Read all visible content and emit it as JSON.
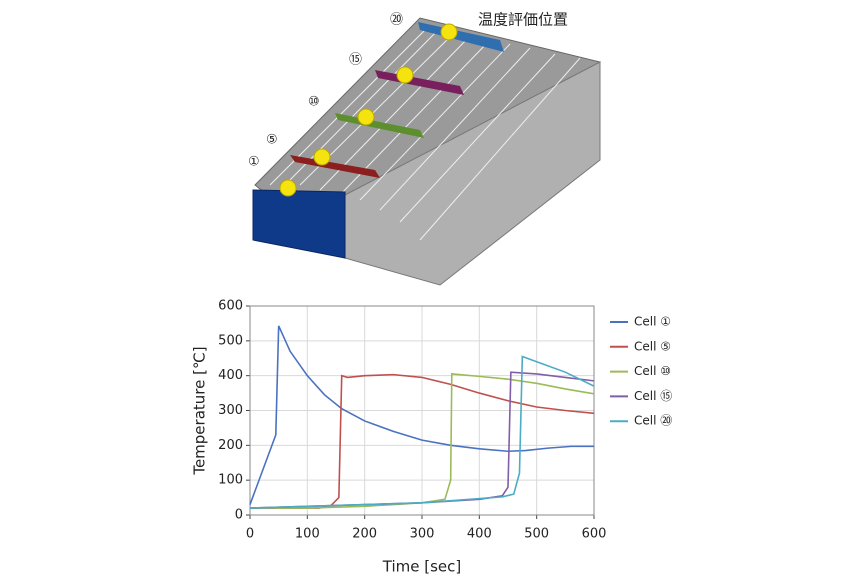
{
  "illustration": {
    "cell_labels": [
      "①",
      "⑤",
      "⑩",
      "⑮",
      "⑳"
    ],
    "caption": "温度評価位置"
  },
  "chart_data": {
    "type": "line",
    "x_label": "Time [sec]",
    "y_label": "Temperature [℃]",
    "xlim": [
      0,
      600
    ],
    "ylim": [
      0,
      600
    ],
    "xticks": [
      0,
      100,
      200,
      300,
      400,
      500,
      600
    ],
    "yticks": [
      0,
      100,
      200,
      300,
      400,
      500,
      600
    ],
    "grid": true,
    "legend": "right",
    "series": [
      {
        "name": "Cell ①",
        "color": "#4a72c0",
        "x": [
          0,
          45,
          50,
          70,
          100,
          130,
          160,
          200,
          250,
          300,
          350,
          400,
          450,
          480,
          520,
          560,
          600
        ],
        "values": [
          30,
          230,
          543,
          470,
          400,
          345,
          305,
          270,
          240,
          215,
          200,
          190,
          183,
          185,
          192,
          197,
          197
        ]
      },
      {
        "name": "Cell ⑤",
        "color": "#c0504d",
        "x": [
          0,
          120,
          140,
          155,
          160,
          170,
          200,
          250,
          300,
          350,
          400,
          450,
          500,
          550,
          600
        ],
        "values": [
          20,
          20,
          25,
          50,
          400,
          395,
          400,
          403,
          395,
          375,
          350,
          328,
          310,
          300,
          292
        ]
      },
      {
        "name": "Cell ⑩",
        "color": "#9bbb59",
        "x": [
          0,
          100,
          200,
          300,
          340,
          350,
          352,
          400,
          450,
          500,
          550,
          600
        ],
        "values": [
          20,
          20,
          25,
          35,
          45,
          100,
          405,
          398,
          390,
          378,
          362,
          348
        ]
      },
      {
        "name": "Cell ⑮",
        "color": "#7f5fa7",
        "x": [
          0,
          300,
          400,
          440,
          450,
          455,
          500,
          550,
          600
        ],
        "values": [
          20,
          35,
          45,
          55,
          80,
          410,
          405,
          395,
          385
        ]
      },
      {
        "name": "Cell ⑳",
        "color": "#4bacc6",
        "x": [
          0,
          300,
          440,
          460,
          470,
          475,
          500,
          550,
          600
        ],
        "values": [
          20,
          35,
          52,
          60,
          120,
          455,
          440,
          410,
          370
        ]
      }
    ]
  }
}
